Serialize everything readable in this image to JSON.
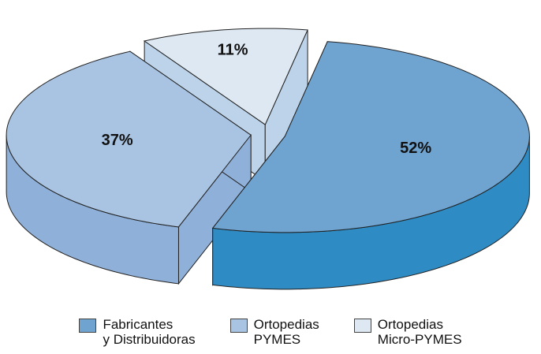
{
  "chart_data": {
    "type": "pie3d",
    "series": [
      {
        "name": "Fabricantes\ny Distribuidoras",
        "color": "#6fa3d0",
        "side_color": "#2e8bc4",
        "values": [
          52
        ],
        "value_labels": [
          "52%"
        ]
      },
      {
        "name": "Ortopedias\nPYMES",
        "color": "#a9c4e2",
        "side_color": "#8fb0d8",
        "values": [
          37
        ],
        "value_labels": [
          "37%"
        ]
      },
      {
        "name": "Ortopedias\nMicro-PYMES",
        "color": "#dde8f3",
        "side_color": "#bdd3ea",
        "values": [
          11
        ],
        "value_labels": [
          "11%"
        ]
      }
    ]
  }
}
